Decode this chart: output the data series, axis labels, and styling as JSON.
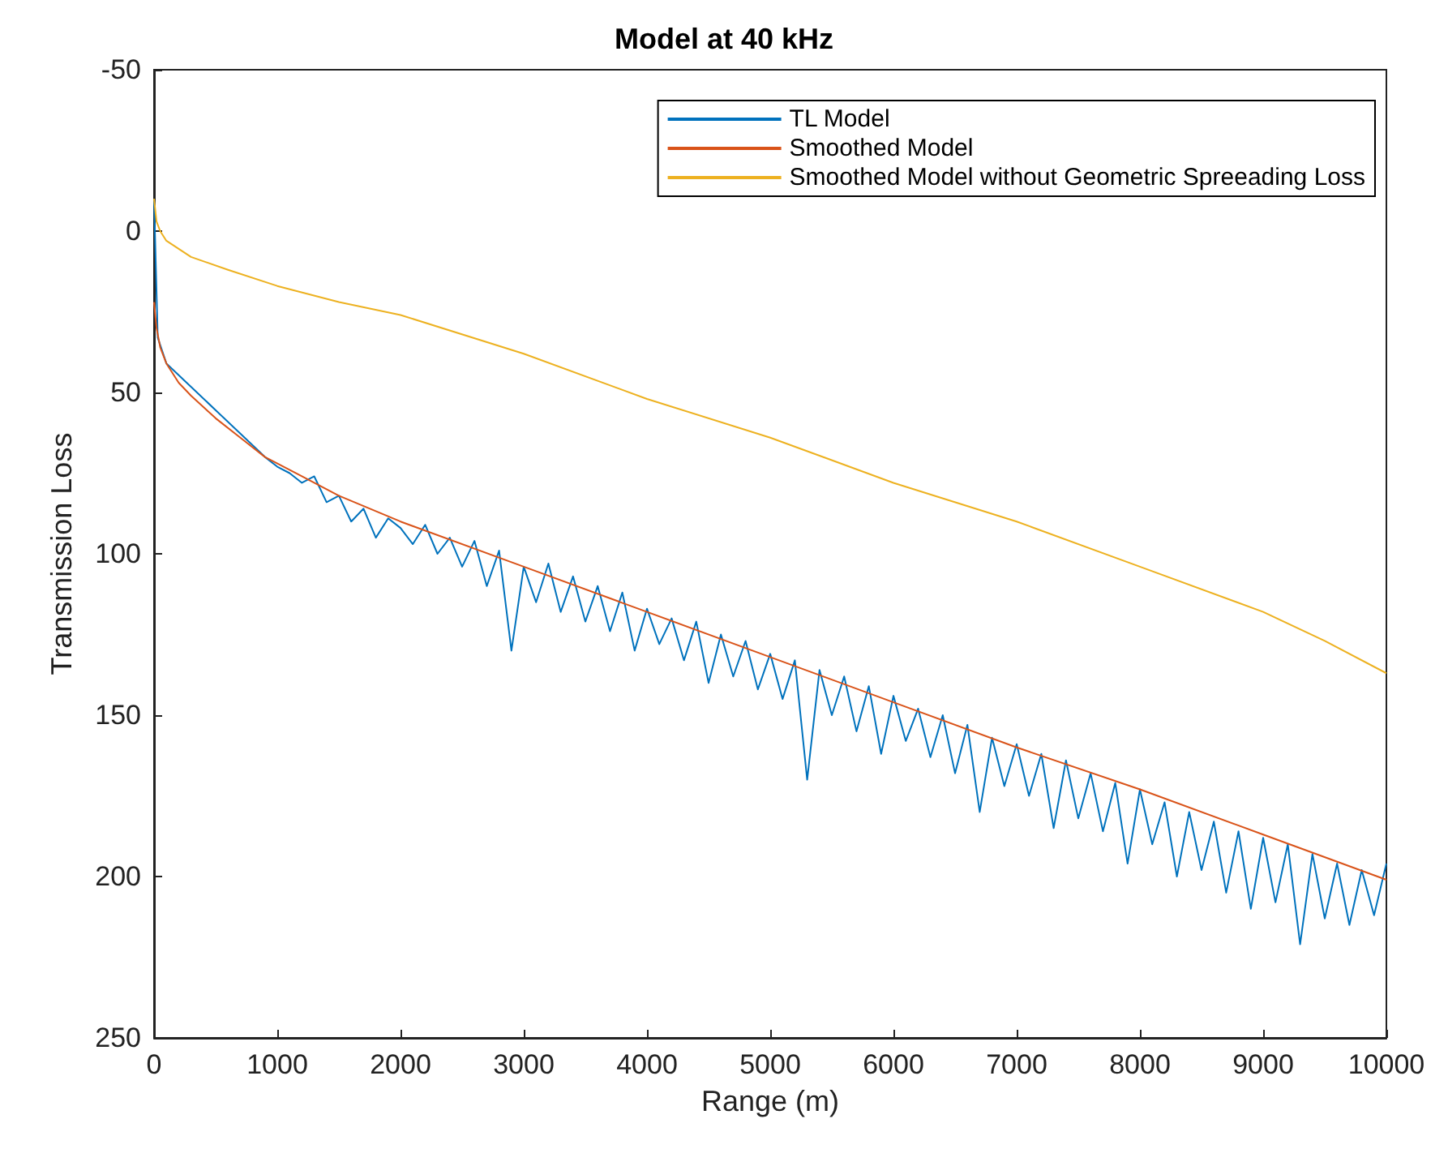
{
  "chart_data": {
    "type": "line",
    "title": "Model at 40 kHz",
    "xlabel": "Range (m)",
    "ylabel": "Transmission Loss",
    "xlim": [
      0,
      10000
    ],
    "xticks": [
      0,
      1000,
      2000,
      3000,
      4000,
      5000,
      6000,
      7000,
      8000,
      9000,
      10000
    ],
    "ylim": [
      250,
      -50
    ],
    "yticks": [
      -50,
      0,
      50,
      100,
      150,
      200,
      250
    ],
    "grid": false,
    "legend": "top right",
    "marker": "none",
    "line_style": "solid",
    "series": [
      {
        "name": "TL Model",
        "color": "#0072bd",
        "x": [
          0,
          30,
          100,
          900,
          1000,
          1100,
          1200,
          1300,
          1400,
          1500,
          1600,
          1700,
          1800,
          1900,
          2000,
          2100,
          2200,
          2300,
          2400,
          2500,
          2600,
          2700,
          2800,
          2900,
          3000,
          3100,
          3200,
          3300,
          3400,
          3500,
          3600,
          3700,
          3800,
          3900,
          4000,
          4100,
          4200,
          4300,
          4400,
          4500,
          4600,
          4700,
          4800,
          4900,
          5000,
          5100,
          5200,
          5300,
          5400,
          5500,
          5600,
          5700,
          5800,
          5900,
          6000,
          6100,
          6200,
          6300,
          6400,
          6500,
          6600,
          6700,
          6800,
          6900,
          7000,
          7100,
          7200,
          7300,
          7400,
          7500,
          7600,
          7700,
          7800,
          7900,
          8000,
          8100,
          8200,
          8300,
          8400,
          8500,
          8600,
          8700,
          8800,
          8900,
          9000,
          9100,
          9200,
          9300,
          9400,
          9500,
          9600,
          9700,
          9800,
          9900,
          10000
        ],
        "values": [
          -10,
          33,
          41,
          70,
          73,
          75,
          78,
          76,
          84,
          82,
          90,
          86,
          95,
          89,
          92,
          97,
          91,
          100,
          95,
          104,
          96,
          110,
          99,
          130,
          104,
          115,
          103,
          118,
          107,
          121,
          110,
          124,
          112,
          130,
          117,
          128,
          120,
          133,
          121,
          140,
          125,
          138,
          127,
          142,
          131,
          145,
          133,
          170,
          136,
          150,
          138,
          155,
          141,
          162,
          144,
          158,
          148,
          163,
          150,
          168,
          153,
          180,
          157,
          172,
          159,
          175,
          162,
          185,
          164,
          182,
          168,
          186,
          171,
          196,
          173,
          190,
          177,
          200,
          180,
          198,
          183,
          205,
          186,
          210,
          188,
          208,
          190,
          221,
          193,
          213,
          196,
          215,
          198,
          212,
          196
        ]
      },
      {
        "name": "Smoothed Model",
        "color": "#d95319",
        "x": [
          0,
          20,
          50,
          100,
          200,
          300,
          500,
          700,
          900,
          1200,
          1500,
          2000,
          3000,
          4000,
          5000,
          6000,
          7000,
          8000,
          9000,
          10000
        ],
        "values": [
          22,
          30,
          36,
          41,
          47,
          51,
          58,
          64,
          70,
          76,
          82,
          90,
          104,
          118,
          132,
          146,
          160,
          173,
          187,
          201
        ]
      },
      {
        "name": "Smoothed Model without Geometric Spreeading Loss",
        "color": "#edb120",
        "x": [
          0,
          20,
          50,
          100,
          300,
          600,
          1000,
          1500,
          2000,
          3000,
          4000,
          5000,
          6000,
          7000,
          8000,
          9000,
          9500,
          10000
        ],
        "values": [
          -10,
          -3,
          0,
          3,
          8,
          12,
          17,
          22,
          26,
          38,
          52,
          64,
          78,
          90,
          104,
          118,
          127,
          137
        ]
      }
    ]
  }
}
